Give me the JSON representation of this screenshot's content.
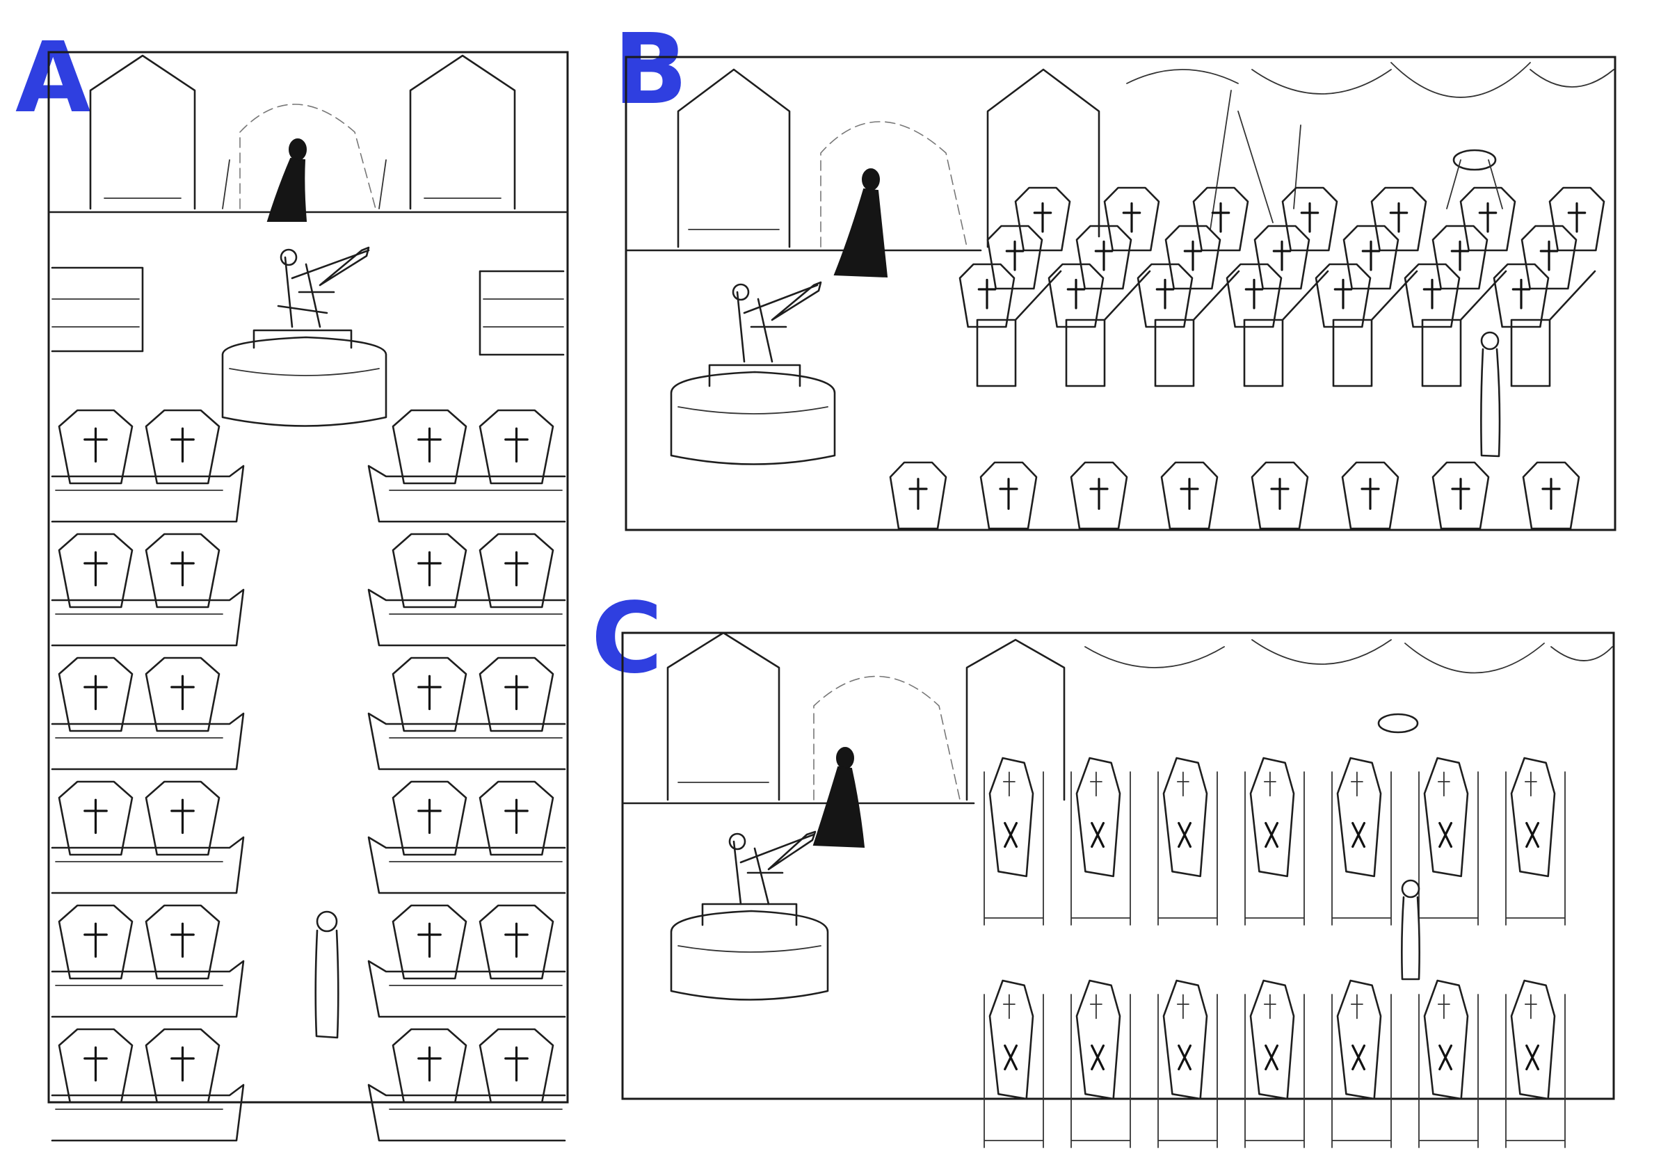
{
  "panels": [
    {
      "id": "A",
      "label": "A"
    },
    {
      "id": "B",
      "label": "B"
    },
    {
      "id": "C",
      "label": "C"
    }
  ],
  "colors": {
    "ink": "#1e1e1e",
    "label_blue": "#2f3fe0",
    "paper": "#ffffff"
  },
  "icons": {
    "coffin_mark_front": "cross",
    "coffin_mark_side": "x",
    "dark_figure": "cloaked-figure",
    "light_figure": "standing-figure",
    "statue": "skeleton-with-sword-on-pedestal"
  }
}
